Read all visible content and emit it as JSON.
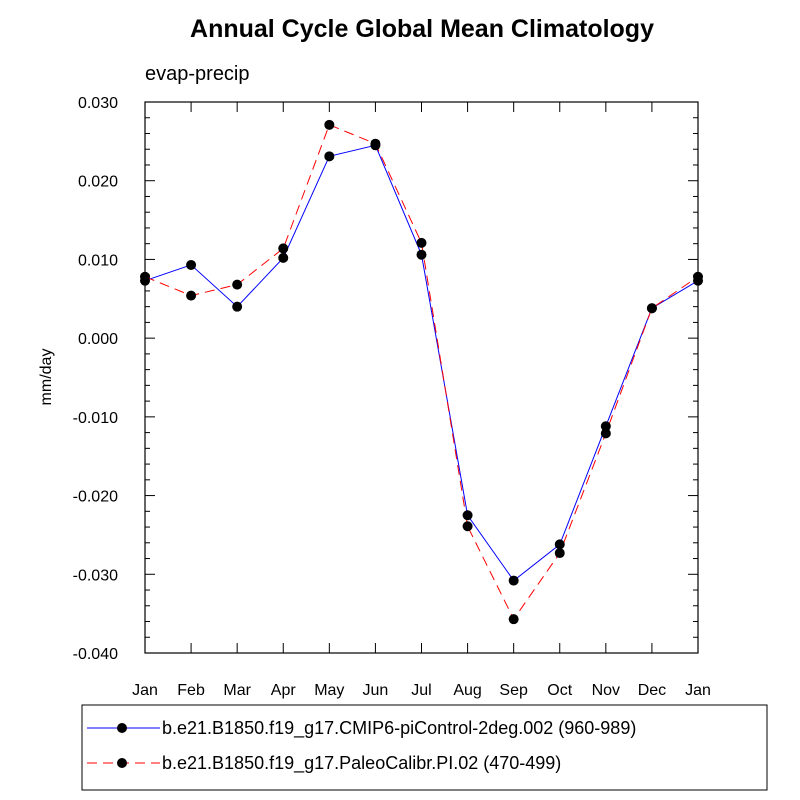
{
  "chart_data": {
    "type": "line",
    "title": "Annual Cycle Global Mean Climatology",
    "subtitle": "evap-precip",
    "xlabel": "",
    "ylabel": "mm/day",
    "categories": [
      "Jan",
      "Feb",
      "Mar",
      "Apr",
      "May",
      "Jun",
      "Jul",
      "Aug",
      "Sep",
      "Oct",
      "Nov",
      "Dec",
      "Jan"
    ],
    "ylim": [
      -0.04,
      0.03
    ],
    "yticks": [
      -0.04,
      -0.03,
      -0.02,
      -0.01,
      0.0,
      0.01,
      0.02,
      0.03
    ],
    "ytick_labels": [
      "-0.040",
      "-0.030",
      "-0.020",
      "-0.010",
      "0.000",
      "0.010",
      "0.020",
      "0.030"
    ],
    "grid": false,
    "legend_position": "bottom",
    "series": [
      {
        "name": "b.e21.B1850.f19_g17.CMIP6-piControl-2deg.002 (960-989)",
        "color": "#0000ff",
        "line_style": "solid",
        "marker": "circle",
        "values": [
          0.0073,
          0.0093,
          0.004,
          0.0102,
          0.0231,
          0.0245,
          0.0106,
          -0.0225,
          -0.0308,
          -0.0262,
          -0.0112,
          0.0038,
          0.0073
        ]
      },
      {
        "name": "b.e21.B1850.f19_g17.PaleoCalibr.PI.02 (470-499)",
        "color": "#ff0000",
        "line_style": "dashed",
        "marker": "circle",
        "values": [
          0.0078,
          0.0054,
          0.0068,
          0.0114,
          0.0271,
          0.0247,
          0.0121,
          -0.0239,
          -0.0357,
          -0.0273,
          -0.0121,
          0.0038,
          0.0078
        ]
      }
    ]
  }
}
